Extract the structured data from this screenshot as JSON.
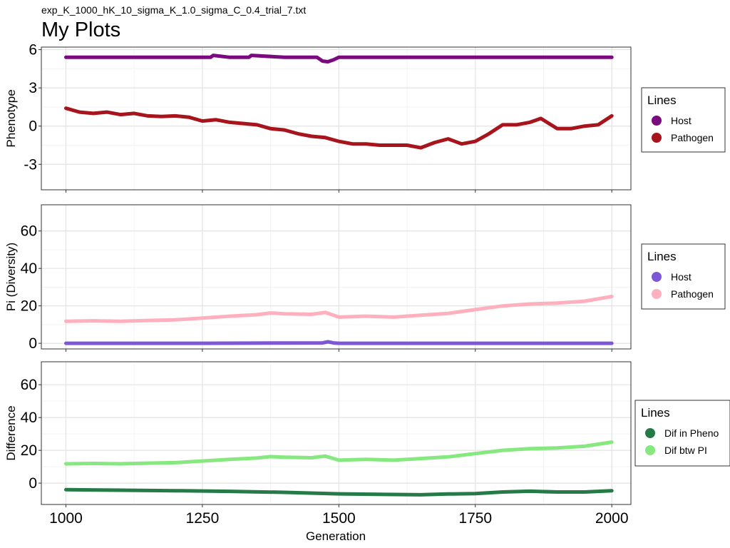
{
  "figure": {
    "subtitle": "exp_K_1000_hK_10_sigma_K_1.0_sigma_C_0.4_trial_7.txt",
    "title": "My Plots",
    "xlabel": "Generation"
  },
  "chart_data": [
    {
      "type": "line",
      "panel": "phenotype",
      "ylabel": "Phenotype",
      "xlim": [
        955,
        2035
      ],
      "ylim": [
        -5,
        6.2
      ],
      "xticks": [
        1000,
        1250,
        1500,
        1750,
        2000
      ],
      "yticks": [
        6,
        3,
        0,
        -3
      ],
      "ytick_labels": [
        "6",
        "3",
        "0",
        "-3"
      ],
      "grid": true,
      "legend": {
        "title": "Lines",
        "position": "right"
      },
      "series": [
        {
          "name": "Host",
          "color": "#7B0A7E",
          "x": [
            1000,
            1100,
            1200,
            1265,
            1270,
            1300,
            1335,
            1340,
            1400,
            1460,
            1470,
            1480,
            1490,
            1500,
            1600,
            1700,
            1800,
            1900,
            2000
          ],
          "y": [
            5.4,
            5.4,
            5.4,
            5.4,
            5.55,
            5.4,
            5.4,
            5.55,
            5.4,
            5.4,
            5.1,
            5.05,
            5.2,
            5.4,
            5.4,
            5.4,
            5.4,
            5.4,
            5.4
          ]
        },
        {
          "name": "Pathogen",
          "color": "#A8141C",
          "x": [
            1000,
            1025,
            1050,
            1075,
            1100,
            1125,
            1150,
            1175,
            1200,
            1225,
            1250,
            1275,
            1300,
            1325,
            1350,
            1375,
            1400,
            1425,
            1450,
            1475,
            1500,
            1525,
            1550,
            1575,
            1600,
            1625,
            1650,
            1675,
            1700,
            1725,
            1750,
            1775,
            1800,
            1825,
            1850,
            1870,
            1900,
            1925,
            1950,
            1975,
            2000
          ],
          "y": [
            1.4,
            1.1,
            1.0,
            1.1,
            0.9,
            1.0,
            0.8,
            0.75,
            0.8,
            0.7,
            0.4,
            0.5,
            0.3,
            0.2,
            0.1,
            -0.2,
            -0.3,
            -0.6,
            -0.8,
            -0.9,
            -1.2,
            -1.4,
            -1.4,
            -1.5,
            -1.5,
            -1.5,
            -1.7,
            -1.3,
            -1.0,
            -1.4,
            -1.2,
            -0.6,
            0.1,
            0.1,
            0.3,
            0.6,
            -0.2,
            -0.2,
            0.0,
            0.1,
            0.8
          ]
        }
      ]
    },
    {
      "type": "line",
      "panel": "diversity",
      "ylabel": "Pi (Diversity)",
      "xlim": [
        955,
        2035
      ],
      "ylim": [
        -3,
        74
      ],
      "xticks": [
        1000,
        1250,
        1500,
        1750,
        2000
      ],
      "yticks": [
        60,
        40,
        20,
        0
      ],
      "ytick_labels": [
        "60",
        "40",
        "20",
        "0"
      ],
      "grid": true,
      "legend": {
        "title": "Lines",
        "position": "right"
      },
      "series": [
        {
          "name": "Host",
          "color": "#7E57D6",
          "x": [
            1000,
            1250,
            1470,
            1480,
            1490,
            1500,
            1750,
            2000
          ],
          "y": [
            0.0,
            0.0,
            0.2,
            0.8,
            0.2,
            0.0,
            0.0,
            0.0
          ]
        },
        {
          "name": "Pathogen",
          "color": "#FFB0BE",
          "x": [
            1000,
            1050,
            1100,
            1150,
            1200,
            1250,
            1300,
            1350,
            1375,
            1400,
            1450,
            1475,
            1500,
            1550,
            1600,
            1650,
            1700,
            1750,
            1800,
            1850,
            1900,
            1950,
            2000
          ],
          "y": [
            11.8,
            12.0,
            11.8,
            12.2,
            12.5,
            13.5,
            14.5,
            15.3,
            16.2,
            15.8,
            15.5,
            16.5,
            14.0,
            14.5,
            14.0,
            15.0,
            16.0,
            18.0,
            20.0,
            21.0,
            21.5,
            22.5,
            25.0
          ]
        }
      ]
    },
    {
      "type": "line",
      "panel": "difference",
      "ylabel": "Difference",
      "xlim": [
        955,
        2035
      ],
      "ylim": [
        -13,
        74
      ],
      "xticks": [
        1000,
        1250,
        1500,
        1750,
        2000
      ],
      "xtick_labels": [
        "1000",
        "1250",
        "1500",
        "1750",
        "2000"
      ],
      "yticks": [
        60,
        40,
        20,
        0
      ],
      "ytick_labels": [
        "60",
        "40",
        "20",
        "0"
      ],
      "grid": true,
      "legend": {
        "title": "Lines",
        "position": "right"
      },
      "series": [
        {
          "name": "Dif in Pheno",
          "color": "#257A48",
          "x": [
            1000,
            1100,
            1200,
            1300,
            1400,
            1500,
            1600,
            1650,
            1700,
            1750,
            1800,
            1850,
            1900,
            1950,
            2000
          ],
          "y": [
            -4.0,
            -4.3,
            -4.6,
            -5.0,
            -5.6,
            -6.5,
            -6.9,
            -7.1,
            -6.6,
            -6.4,
            -5.4,
            -4.9,
            -5.4,
            -5.4,
            -4.6
          ]
        },
        {
          "name": "Dif btw PI",
          "color": "#86E87F",
          "x": [
            1000,
            1050,
            1100,
            1150,
            1200,
            1250,
            1300,
            1350,
            1375,
            1400,
            1450,
            1475,
            1500,
            1550,
            1600,
            1650,
            1700,
            1750,
            1800,
            1850,
            1900,
            1950,
            2000
          ],
          "y": [
            11.8,
            12.0,
            11.8,
            12.2,
            12.5,
            13.5,
            14.5,
            15.3,
            16.2,
            15.8,
            15.5,
            16.5,
            14.0,
            14.5,
            14.0,
            15.0,
            16.0,
            18.0,
            20.0,
            21.0,
            21.5,
            22.5,
            25.0
          ]
        }
      ]
    }
  ]
}
